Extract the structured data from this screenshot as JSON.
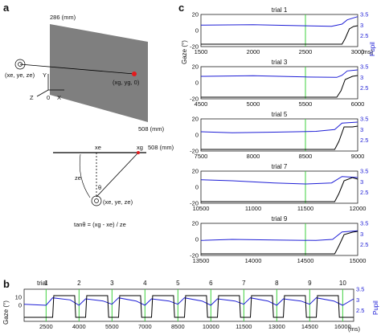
{
  "panel_labels": {
    "a": "a",
    "b": "b",
    "c": "c"
  },
  "panel_a": {
    "top_dim": "286 (mm)",
    "bottom_dim": "508 (mm)",
    "eye_label": "(x",
    "eye_label_full": "(xe, ye, ze)",
    "target_label": "(xg, yg, 0)",
    "axis_x": "X",
    "axis_y": "Y",
    "axis_z": "Z",
    "origin": "0",
    "line_start": "0",
    "xe_label": "xe",
    "xg_label": "xg",
    "line_end": "508 (mm)",
    "ze_label": "ze",
    "theta": "θ",
    "formula": "tanθ = (xg - xe) / ze",
    "colors": {
      "screen": "#7f7f7f",
      "target": "#e41a1c"
    }
  },
  "panel_b": {
    "ylabel_left": "Gaze (°)",
    "ylabel_right": "Pupil",
    "trial_word": "trial",
    "trial_numbers": [
      "1",
      "2",
      "3",
      "4",
      "5",
      "6",
      "7",
      "8",
      "9",
      "10"
    ],
    "x_ticks": [
      "2500",
      "4000",
      "5500",
      "7000",
      "8500",
      "10000",
      "11500",
      "13000",
      "14500",
      "16000"
    ],
    "x_unit": "(ms)",
    "y_ticks_left": [
      "10",
      "0"
    ],
    "y_ticks_right": [
      "3.5",
      "3",
      "2.5"
    ]
  },
  "chart_data": [
    {
      "type": "line",
      "panel": "c",
      "title": "trial 1",
      "x": [
        1500,
        2000,
        2500,
        3000
      ],
      "xlim": [
        1500,
        3000
      ],
      "ylim_left": [
        -20,
        20
      ],
      "ylim_right": [
        2.0,
        3.5
      ],
      "marker_x": 2500,
      "x_ticks": [
        "1500",
        "2000",
        "2500",
        "3000"
      ],
      "y_ticks_left": [
        "20",
        "0",
        "-20"
      ],
      "y_ticks_right": [
        "3.5",
        "3",
        "2.5"
      ],
      "x_unit": "(ms)",
      "series": [
        {
          "name": "Pupil",
          "axis": "right",
          "color": "#1f1fd6",
          "points": [
            [
              1500,
              3.0
            ],
            [
              2000,
              3.02
            ],
            [
              2500,
              2.97
            ],
            [
              2750,
              2.95
            ],
            [
              2850,
              3.05
            ],
            [
              2900,
              3.25
            ],
            [
              3000,
              3.4
            ]
          ]
        },
        {
          "name": "Gaze",
          "axis": "left",
          "color": "#000000",
          "points": [
            [
              1500,
              -17
            ],
            [
              2850,
              -17
            ],
            [
              2880,
              -10
            ],
            [
              2920,
              2
            ],
            [
              2960,
              5
            ],
            [
              3000,
              6
            ]
          ]
        }
      ]
    },
    {
      "type": "line",
      "panel": "c",
      "title": "trial 3",
      "x": [
        4500,
        5000,
        5500,
        6000
      ],
      "xlim": [
        4500,
        6000
      ],
      "ylim_left": [
        -20,
        20
      ],
      "ylim_right": [
        2.0,
        3.5
      ],
      "marker_x": 5500,
      "x_ticks": [
        "4500",
        "5000",
        "5500",
        "6000"
      ],
      "y_ticks_left": [
        "20",
        "0",
        "-20"
      ],
      "y_ticks_right": [
        "3.5",
        "3",
        "2.5"
      ],
      "x_unit": "",
      "series": [
        {
          "name": "Pupil",
          "axis": "right",
          "color": "#1f1fd6",
          "points": [
            [
              4500,
              3.05
            ],
            [
              5000,
              3.08
            ],
            [
              5500,
              3.02
            ],
            [
              5800,
              3.0
            ],
            [
              5850,
              3.1
            ],
            [
              5900,
              3.3
            ],
            [
              6000,
              3.35
            ]
          ]
        },
        {
          "name": "Gaze",
          "axis": "left",
          "color": "#000000",
          "points": [
            [
              4500,
              -18
            ],
            [
              5800,
              -18
            ],
            [
              5840,
              -10
            ],
            [
              5880,
              4
            ],
            [
              5950,
              8
            ],
            [
              6000,
              9
            ]
          ]
        }
      ]
    },
    {
      "type": "line",
      "panel": "c",
      "title": "trial 5",
      "x": [
        7500,
        8000,
        8500,
        9000
      ],
      "xlim": [
        7500,
        9000
      ],
      "ylim_left": [
        -20,
        20
      ],
      "ylim_right": [
        2.0,
        3.5
      ],
      "marker_x": 8500,
      "x_ticks": [
        "7500",
        "8000",
        "8500",
        "9000"
      ],
      "y_ticks_left": [
        "20",
        "0",
        "-20"
      ],
      "y_ticks_right": [
        "3.5",
        "3",
        "2.5"
      ],
      "x_unit": "",
      "series": [
        {
          "name": "Pupil",
          "axis": "right",
          "color": "#1f1fd6",
          "points": [
            [
              7500,
              2.9
            ],
            [
              7800,
              2.85
            ],
            [
              8200,
              2.88
            ],
            [
              8600,
              2.92
            ],
            [
              8780,
              3.0
            ],
            [
              8850,
              3.3
            ],
            [
              9000,
              3.35
            ]
          ]
        },
        {
          "name": "Gaze",
          "axis": "left",
          "color": "#000000",
          "points": [
            [
              7500,
              -18
            ],
            [
              8780,
              -18
            ],
            [
              8820,
              -8
            ],
            [
              8870,
              10
            ],
            [
              8950,
              10
            ],
            [
              9000,
              11
            ]
          ]
        }
      ]
    },
    {
      "type": "line",
      "panel": "c",
      "title": "trial 7",
      "x": [
        10500,
        11000,
        11500,
        12000
      ],
      "xlim": [
        10500,
        12000
      ],
      "ylim_left": [
        -20,
        20
      ],
      "ylim_right": [
        2.0,
        3.5
      ],
      "marker_x": 11500,
      "x_ticks": [
        "10500",
        "11000",
        "11500",
        "12000"
      ],
      "y_ticks_left": [
        "20",
        "0",
        "-20"
      ],
      "y_ticks_right": [
        "3.5",
        "3",
        "2.5"
      ],
      "x_unit": "",
      "series": [
        {
          "name": "Pupil",
          "axis": "right",
          "color": "#1f1fd6",
          "points": [
            [
              10500,
              3.1
            ],
            [
              10800,
              3.05
            ],
            [
              11200,
              2.95
            ],
            [
              11500,
              2.9
            ],
            [
              11750,
              2.95
            ],
            [
              11850,
              3.25
            ],
            [
              12000,
              3.2
            ]
          ]
        },
        {
          "name": "Gaze",
          "axis": "left",
          "color": "#000000",
          "points": [
            [
              10500,
              -18
            ],
            [
              11780,
              -18
            ],
            [
              11820,
              -8
            ],
            [
              11870,
              8
            ],
            [
              11950,
              12
            ],
            [
              12000,
              10
            ]
          ]
        }
      ]
    },
    {
      "type": "line",
      "panel": "c",
      "title": "trial 9",
      "x": [
        13500,
        14000,
        14500,
        15000
      ],
      "xlim": [
        13500,
        15000
      ],
      "ylim_left": [
        -20,
        20
      ],
      "ylim_right": [
        2.0,
        3.5
      ],
      "marker_x": 14500,
      "x_ticks": [
        "13500",
        "14000",
        "14500",
        "15000"
      ],
      "y_ticks_left": [
        "20",
        "0",
        "-20"
      ],
      "y_ticks_right": [
        "3.5",
        "3",
        "2.5"
      ],
      "x_unit": "",
      "series": [
        {
          "name": "Pupil",
          "axis": "right",
          "color": "#1f1fd6",
          "points": [
            [
              13500,
              2.7
            ],
            [
              13800,
              2.75
            ],
            [
              14200,
              2.72
            ],
            [
              14600,
              2.7
            ],
            [
              14760,
              2.75
            ],
            [
              14850,
              3.1
            ],
            [
              15000,
              3.15
            ]
          ]
        },
        {
          "name": "Gaze",
          "axis": "left",
          "color": "#000000",
          "points": [
            [
              13500,
              -18
            ],
            [
              14780,
              -18
            ],
            [
              14820,
              -8
            ],
            [
              14870,
              6
            ],
            [
              14950,
              9
            ],
            [
              15000,
              10
            ]
          ]
        }
      ]
    },
    {
      "type": "line",
      "panel": "b",
      "title": "",
      "xlim": [
        1500,
        16500
      ],
      "ylim_left": [
        -20,
        20
      ],
      "ylim_right": [
        2.0,
        3.5
      ],
      "marker_x": [
        2500,
        4000,
        5500,
        7000,
        8500,
        10000,
        11500,
        13000,
        14500,
        16000
      ],
      "series": [
        {
          "name": "Pupil",
          "axis": "right",
          "color": "#1f1fd6",
          "points": [
            [
              1500,
              2.8
            ],
            [
              2500,
              2.75
            ],
            [
              2800,
              3.1
            ],
            [
              3600,
              3.0
            ],
            [
              4000,
              2.75
            ],
            [
              4300,
              3.05
            ],
            [
              5100,
              2.95
            ],
            [
              5500,
              2.8
            ],
            [
              5800,
              3.1
            ],
            [
              6600,
              2.95
            ],
            [
              7000,
              2.75
            ],
            [
              7300,
              3.05
            ],
            [
              8100,
              2.95
            ],
            [
              8500,
              2.8
            ],
            [
              8800,
              3.1
            ],
            [
              9600,
              2.95
            ],
            [
              10000,
              2.75
            ],
            [
              10300,
              3.05
            ],
            [
              11100,
              2.95
            ],
            [
              11500,
              2.8
            ],
            [
              11800,
              3.1
            ],
            [
              12600,
              2.95
            ],
            [
              13000,
              2.75
            ],
            [
              13300,
              3.05
            ],
            [
              14100,
              2.95
            ],
            [
              14500,
              2.8
            ],
            [
              14800,
              3.1
            ],
            [
              15600,
              2.95
            ],
            [
              16000,
              2.75
            ],
            [
              16500,
              3.05
            ]
          ]
        },
        {
          "name": "Gaze",
          "axis": "left",
          "color": "#000000",
          "points": [
            [
              1500,
              -15
            ],
            [
              2800,
              -15
            ],
            [
              2850,
              12
            ],
            [
              3800,
              12
            ],
            [
              3850,
              -15
            ],
            [
              4300,
              -15
            ],
            [
              4350,
              12
            ],
            [
              5300,
              12
            ],
            [
              5350,
              -15
            ],
            [
              5800,
              -15
            ],
            [
              5850,
              12
            ],
            [
              6800,
              12
            ],
            [
              6850,
              -15
            ],
            [
              7300,
              -15
            ],
            [
              7350,
              12
            ],
            [
              8300,
              12
            ],
            [
              8350,
              -15
            ],
            [
              8800,
              -15
            ],
            [
              8850,
              12
            ],
            [
              9800,
              12
            ],
            [
              9850,
              -15
            ],
            [
              10300,
              -15
            ],
            [
              10350,
              12
            ],
            [
              11300,
              12
            ],
            [
              11350,
              -15
            ],
            [
              11800,
              -15
            ],
            [
              11850,
              12
            ],
            [
              12800,
              12
            ],
            [
              12850,
              -15
            ],
            [
              13300,
              -15
            ],
            [
              13350,
              12
            ],
            [
              14300,
              12
            ],
            [
              14350,
              -15
            ],
            [
              14800,
              -15
            ],
            [
              14850,
              12
            ],
            [
              15800,
              12
            ],
            [
              15850,
              -15
            ],
            [
              16500,
              -15
            ]
          ]
        }
      ]
    }
  ],
  "c_axis_labels": {
    "ylabel_left": "Gaze (°)",
    "ylabel_right": "Pupil"
  }
}
